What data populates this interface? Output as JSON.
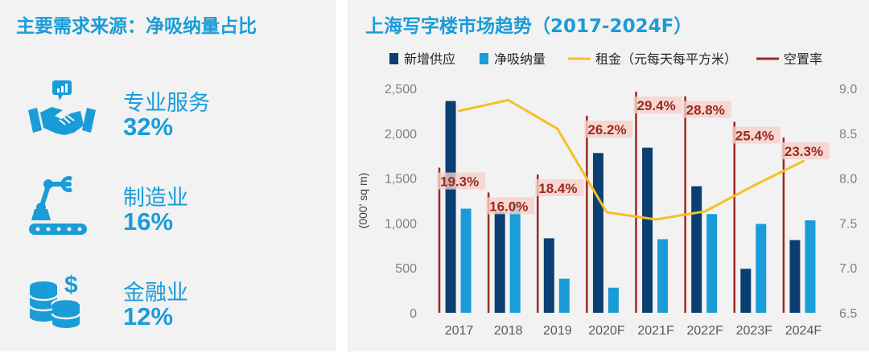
{
  "left": {
    "title": "主要需求来源：净吸纳量占比",
    "items": [
      {
        "label": "专业服务",
        "value": "32%",
        "icon": "handshake-chat-icon"
      },
      {
        "label": "制造业",
        "value": "16%",
        "icon": "robot-arm-conveyor-icon"
      },
      {
        "label": "金融业",
        "value": "12%",
        "icon": "coins-dollar-icon"
      }
    ]
  },
  "colors": {
    "accent": "#1a9cd8",
    "supply": "#0b3f71",
    "absorption": "#1a9cd8",
    "rent": "#f5c023",
    "vacancy": "#9b2b22",
    "vacancy_label_bg": "#f6d0c8"
  },
  "chart_data": {
    "type": "bar",
    "title": "上海写字楼市场趋势（2017-2024F）",
    "categories": [
      "2017",
      "2018",
      "2019",
      "2020F",
      "2021F",
      "2022F",
      "2023F",
      "2024F"
    ],
    "series": [
      {
        "name": "新增供应",
        "type": "bar",
        "axis": "left",
        "values": [
          2360,
          1120,
          830,
          1780,
          1840,
          1410,
          490,
          810
        ]
      },
      {
        "name": "净吸纳量",
        "type": "bar",
        "axis": "left",
        "values": [
          1160,
          1240,
          380,
          280,
          820,
          1100,
          990,
          1030
        ]
      },
      {
        "name": "租金（元每天每平方米）",
        "type": "line",
        "axis": "right",
        "values": [
          8.75,
          8.87,
          8.55,
          7.62,
          7.54,
          7.63,
          7.92,
          8.19
        ]
      },
      {
        "name": "空置率",
        "type": "vertical-line",
        "values": [
          19.3,
          16.0,
          18.4,
          26.2,
          29.4,
          28.8,
          25.4,
          23.3
        ]
      }
    ],
    "vacancy_labels": [
      "19.3%",
      "16.0%",
      "18.4%",
      "26.2%",
      "29.4%",
      "28.8%",
      "25.4%",
      "23.3%"
    ],
    "ylabel": "(000' sq m)",
    "ylim": [
      0,
      2500
    ],
    "y_ticks": [
      "0",
      "500",
      "1,000",
      "1,500",
      "2,000",
      "2,500"
    ],
    "y2lim": [
      6.5,
      9.0
    ],
    "y2_ticks": [
      "6.5",
      "7.0",
      "7.5",
      "8.0",
      "8.5",
      "9.0"
    ],
    "legend_position": "top",
    "grid": false
  }
}
